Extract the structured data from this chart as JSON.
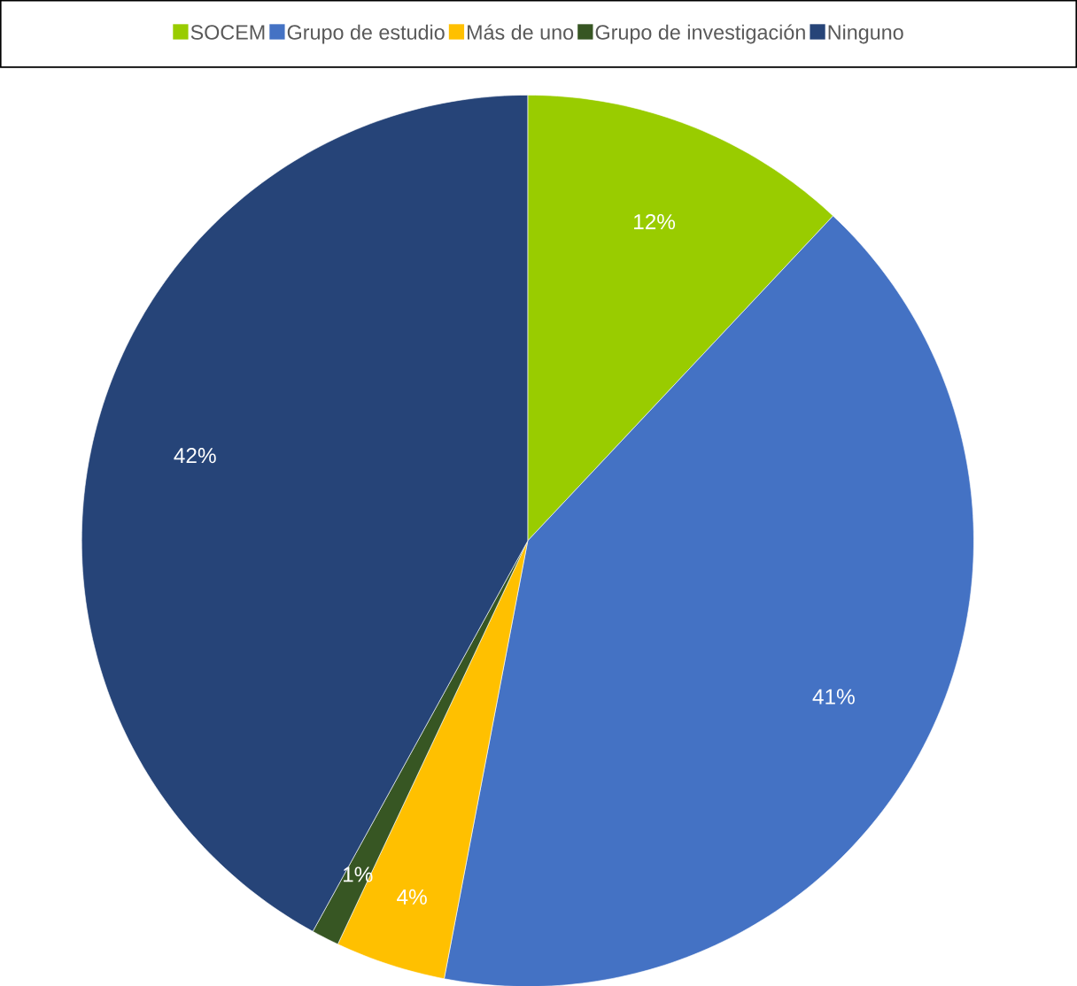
{
  "chart_data": {
    "type": "pie",
    "categories": [
      "SOCEM",
      "Grupo de estudio",
      "Más de uno",
      "Grupo de investigación",
      "Ninguno"
    ],
    "values": [
      12,
      41,
      4,
      1,
      42
    ],
    "colors": [
      "#99cc00",
      "#4472c4",
      "#ffc000",
      "#375623",
      "#264478"
    ],
    "value_labels": [
      "12%",
      "41%",
      "4%",
      "1%",
      "42%"
    ],
    "legend": "top"
  }
}
